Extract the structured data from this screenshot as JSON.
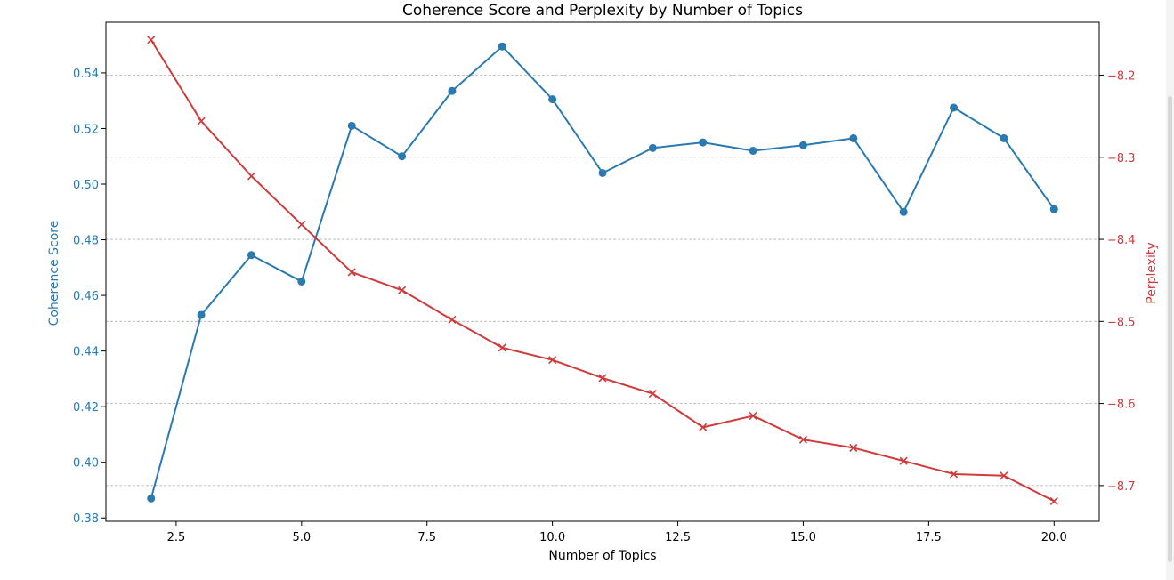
{
  "chart_data": {
    "type": "line",
    "title": "Coherence Score and Perplexity by Number of Topics",
    "xlabel": "Number of Topics",
    "ylabel_left": "Coherence Score",
    "ylabel_right": "Perplexity",
    "x": [
      2,
      3,
      4,
      5,
      6,
      7,
      8,
      9,
      10,
      11,
      12,
      13,
      14,
      15,
      16,
      17,
      18,
      19,
      20
    ],
    "xlim": [
      1.1,
      20.9
    ],
    "xticks": [
      2.5,
      5.0,
      7.5,
      10.0,
      12.5,
      15.0,
      17.5,
      20.0
    ],
    "xtick_labels": [
      "2.5",
      "5.0",
      "7.5",
      "10.0",
      "12.5",
      "15.0",
      "17.5",
      "20.0"
    ],
    "ylim_left": [
      0.3788,
      0.5582
    ],
    "yticks_left": [
      0.38,
      0.4,
      0.42,
      0.44,
      0.46,
      0.48,
      0.5,
      0.52,
      0.54
    ],
    "ytick_labels_left": [
      "0.38",
      "0.40",
      "0.42",
      "0.44",
      "0.46",
      "0.48",
      "0.50",
      "0.52",
      "0.54"
    ],
    "ylim_right": [
      -8.7435,
      -8.1355
    ],
    "yticks_right": [
      -8.7,
      -8.6,
      -8.5,
      -8.4,
      -8.3,
      -8.2
    ],
    "ytick_labels_right": [
      "−8.7",
      "−8.6",
      "−8.5",
      "−8.4",
      "−8.3",
      "−8.2"
    ],
    "grid": "horizontal dashed, right axis",
    "series": [
      {
        "name": "Coherence Score",
        "axis": "left",
        "color": "#2a7ab0",
        "marker": "circle",
        "values": [
          0.387,
          0.453,
          0.4745,
          0.465,
          0.521,
          0.51,
          0.5335,
          0.5495,
          0.5305,
          0.504,
          0.513,
          0.515,
          0.512,
          0.514,
          0.5165,
          0.49,
          0.5275,
          0.5165,
          0.491
        ]
      },
      {
        "name": "Perplexity",
        "axis": "right",
        "color": "#d03a3a",
        "marker": "x",
        "values": [
          -8.157,
          -8.256,
          -8.323,
          -8.382,
          -8.44,
          -8.462,
          -8.498,
          -8.532,
          -8.547,
          -8.569,
          -8.588,
          -8.629,
          -8.615,
          -8.644,
          -8.654,
          -8.67,
          -8.686,
          -8.688,
          -8.719
        ]
      }
    ]
  }
}
